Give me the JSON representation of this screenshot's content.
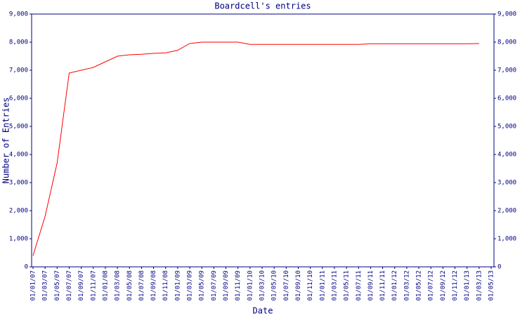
{
  "chart_data": {
    "type": "line",
    "title": "Boardcell's entries",
    "x_label": "Date",
    "y_label": "Number of Entries",
    "categories": [
      "01/01/07",
      "01/03/07",
      "01/05/07",
      "01/07/07",
      "01/09/07",
      "01/11/07",
      "01/01/08",
      "01/03/08",
      "01/05/08",
      "01/07/08",
      "01/09/08",
      "01/11/08",
      "01/01/09",
      "01/03/09",
      "01/05/09",
      "01/07/09",
      "01/09/09",
      "01/11/09",
      "01/01/10",
      "01/03/10",
      "01/05/10",
      "01/07/10",
      "01/09/10",
      "01/11/10",
      "01/01/11",
      "01/03/11",
      "01/05/11",
      "01/07/11",
      "01/09/11",
      "01/11/11",
      "01/01/12",
      "01/03/12",
      "01/05/12",
      "01/07/12",
      "01/09/12",
      "01/11/12",
      "01/01/13",
      "01/03/13",
      "01/05/13"
    ],
    "series": [
      {
        "name": "entries",
        "color": "#ff0000",
        "values": [
          400,
          1800,
          3700,
          6900,
          7000,
          7100,
          7300,
          7500,
          7550,
          7570,
          7600,
          7620,
          7710,
          7950,
          8000,
          8000,
          8000,
          8000,
          7920,
          7920,
          7920,
          7920,
          7920,
          7920,
          7920,
          7920,
          7920,
          7920,
          7940,
          7940,
          7940,
          7940,
          7940,
          7940,
          7940,
          7940,
          7940,
          7950,
          null
        ]
      }
    ],
    "ylim": [
      0,
      9000
    ],
    "yticks": [
      0,
      {
        "value": 1000,
        "label": "1,000"
      },
      {
        "value": 2000,
        "label": "2,000"
      },
      {
        "value": 3000,
        "label": "3,000"
      },
      {
        "value": 4000,
        "label": "4,000"
      },
      {
        "value": 5000,
        "label": "5,000"
      },
      {
        "value": 6000,
        "label": "6,000"
      },
      {
        "value": 7000,
        "label": "7,000"
      },
      {
        "value": 8000,
        "label": "8,000"
      },
      {
        "value": 9000,
        "label": "9,000"
      }
    ],
    "axis_color": "#000080",
    "grid": false
  }
}
